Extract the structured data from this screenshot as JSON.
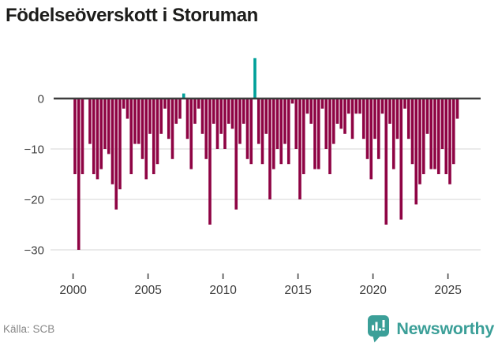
{
  "title": "Födelseöverskott i Storuman",
  "footer": {
    "source_label": "Källa: SCB"
  },
  "brand": {
    "name": "Newsworthy",
    "color": "#3b9f98"
  },
  "chart_data": {
    "type": "bar",
    "title": "Födelseöverskott i Storuman",
    "frequency": "quarterly",
    "period_start": "2000-Q1",
    "period_end": "2025-Q3",
    "x_ticks": [
      2000,
      2005,
      2010,
      2015,
      2020,
      2025
    ],
    "y_ticks": [
      0,
      -10,
      -20,
      -30
    ],
    "ylim": [
      -33,
      10
    ],
    "grid": "horizontal",
    "legend": "none",
    "colors": {
      "negative": "#8e0343",
      "positive": "#00a099",
      "zero_line": "#3d3d3d",
      "gridline": "#e4e4e4"
    },
    "values": [
      -15,
      -30,
      -15,
      0,
      -9,
      -15,
      -16,
      -14,
      -10,
      -11,
      -17,
      -22,
      -18,
      -2,
      -4,
      -15,
      -9,
      -9,
      -12,
      -16,
      -7,
      -15,
      -13,
      -7,
      -2,
      -8,
      -12,
      -5,
      -4,
      1,
      -8,
      -14,
      -5,
      -2,
      -7,
      -12,
      -25,
      -5,
      -10,
      -7,
      -10,
      -5,
      -6,
      -22,
      -9,
      -5,
      -12,
      -13,
      8,
      -9,
      -13,
      -7,
      -20,
      -14,
      -10,
      -13,
      -9,
      -13,
      -1,
      -10,
      -20,
      -15,
      -3,
      -5,
      -14,
      -14,
      -2,
      -10,
      -15,
      -9,
      -5,
      -6,
      -7,
      -3,
      -8,
      -3,
      -3,
      -8,
      -12,
      -16,
      -8,
      -12,
      -3,
      -25,
      -5,
      -14,
      -8,
      -24,
      -2,
      -8,
      -13,
      -21,
      -17,
      -15,
      -7,
      -14,
      -14,
      -15,
      -10,
      -15,
      -17,
      -13,
      -4
    ]
  }
}
